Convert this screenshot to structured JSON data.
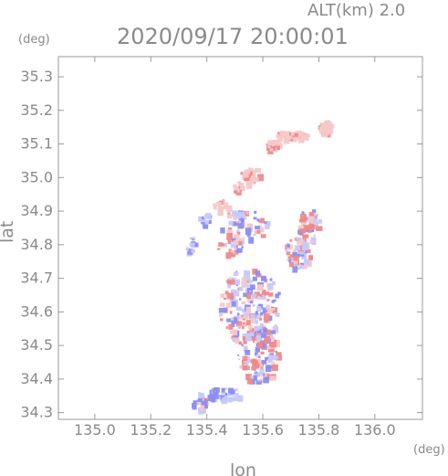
{
  "header": {
    "alt_label": "ALT(km)  2.0",
    "timestamp": "2020/09/17 20:00:01",
    "y_unit": "(deg)",
    "x_unit": "(deg)"
  },
  "chart_data": {
    "type": "heatmap",
    "xlabel": "lon",
    "ylabel": "lat",
    "xlim": [
      134.87,
      136.17
    ],
    "ylim": [
      34.28,
      35.36
    ],
    "xticks": [
      "135.0",
      "135.2",
      "135.4",
      "135.6",
      "135.8",
      "136.0"
    ],
    "yticks": [
      "34.3",
      "34.4",
      "34.5",
      "34.6",
      "34.7",
      "34.8",
      "34.9",
      "35.0",
      "35.1",
      "35.2",
      "35.3"
    ],
    "colors": {
      "negative": "#8a8ef0",
      "negative_light": "#c7c9fa",
      "positive": "#ef8a8a",
      "positive_light": "#f7c8c8"
    },
    "clusters": [
      {
        "lon": 135.82,
        "lat": 35.155,
        "sign": "positive"
      },
      {
        "lon": 135.7,
        "lat": 35.13,
        "sign": "positive"
      },
      {
        "lon": 135.63,
        "lat": 35.1,
        "sign": "positive"
      },
      {
        "lon": 135.55,
        "lat": 35.01,
        "sign": "positive"
      },
      {
        "lon": 135.51,
        "lat": 34.975,
        "sign": "positive"
      },
      {
        "lon": 135.45,
        "lat": 34.92,
        "sign": "positive"
      },
      {
        "lon": 135.39,
        "lat": 34.88,
        "sign": "negative"
      },
      {
        "lon": 135.53,
        "lat": 34.86,
        "sign": "mixed"
      },
      {
        "lon": 135.76,
        "lat": 34.86,
        "sign": "mixed"
      },
      {
        "lon": 135.72,
        "lat": 34.78,
        "sign": "mixed"
      },
      {
        "lon": 135.34,
        "lat": 34.8,
        "sign": "negative"
      },
      {
        "lon": 135.48,
        "lat": 34.8,
        "sign": "mixed"
      },
      {
        "lon": 135.55,
        "lat": 34.62,
        "sign": "mixed"
      },
      {
        "lon": 135.58,
        "lat": 34.48,
        "sign": "mixed"
      },
      {
        "lon": 135.45,
        "lat": 34.36,
        "sign": "negative"
      },
      {
        "lon": 135.37,
        "lat": 34.33,
        "sign": "mixed"
      }
    ]
  }
}
